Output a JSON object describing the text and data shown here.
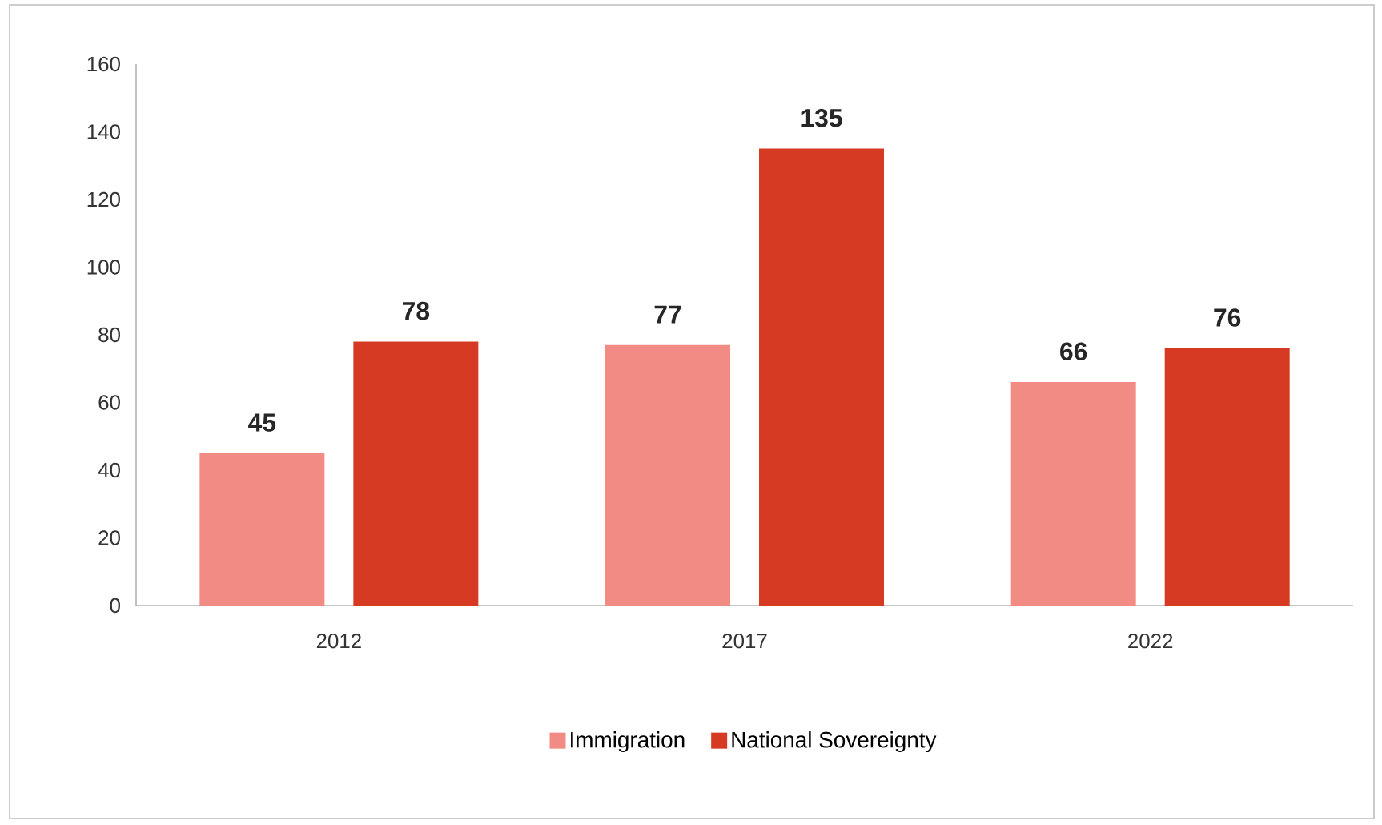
{
  "chart_data": {
    "type": "bar",
    "categories": [
      "2012",
      "2017",
      "2022"
    ],
    "series": [
      {
        "name": "Immigration",
        "color": "#f28b83",
        "values": [
          45,
          77,
          66
        ]
      },
      {
        "name": "National Sovereignty",
        "color": "#d63a22",
        "values": [
          78,
          135,
          76
        ]
      }
    ],
    "ylim": [
      0,
      160
    ],
    "yticks": [
      0,
      20,
      40,
      60,
      80,
      100,
      120,
      140,
      160
    ],
    "grid": false,
    "legend": "bottom",
    "data_labels": true
  }
}
